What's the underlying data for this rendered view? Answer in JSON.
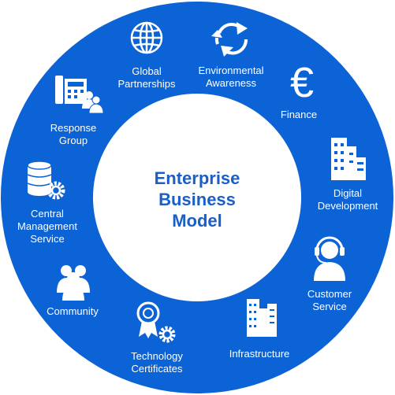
{
  "title": "Enterprise\nBusiness\nModel",
  "colors": {
    "ring": "#0c63d6",
    "center": "#ffffff",
    "title": "#1a5fc9",
    "icon": "#ffffff"
  },
  "segments": [
    {
      "label": "Global\nPartnerships",
      "icon": "globe-icon"
    },
    {
      "label": "Environmental\nAwareness",
      "icon": "recycle-arrows-icon"
    },
    {
      "label": "Finance",
      "icon": "euro-icon"
    },
    {
      "label": "Digital\nDevelopment",
      "icon": "buildings-icon"
    },
    {
      "label": "Customer\nService",
      "icon": "headset-agent-icon"
    },
    {
      "label": "Infrastructure",
      "icon": "skyscraper-icon"
    },
    {
      "label": "Technology\nCertificates",
      "icon": "award-gear-icon"
    },
    {
      "label": "Community",
      "icon": "people-group-icon"
    },
    {
      "label": "Central\nManagement\nService",
      "icon": "database-gear-icon"
    },
    {
      "label": "Response\nGroup",
      "icon": "phone-users-icon"
    }
  ]
}
